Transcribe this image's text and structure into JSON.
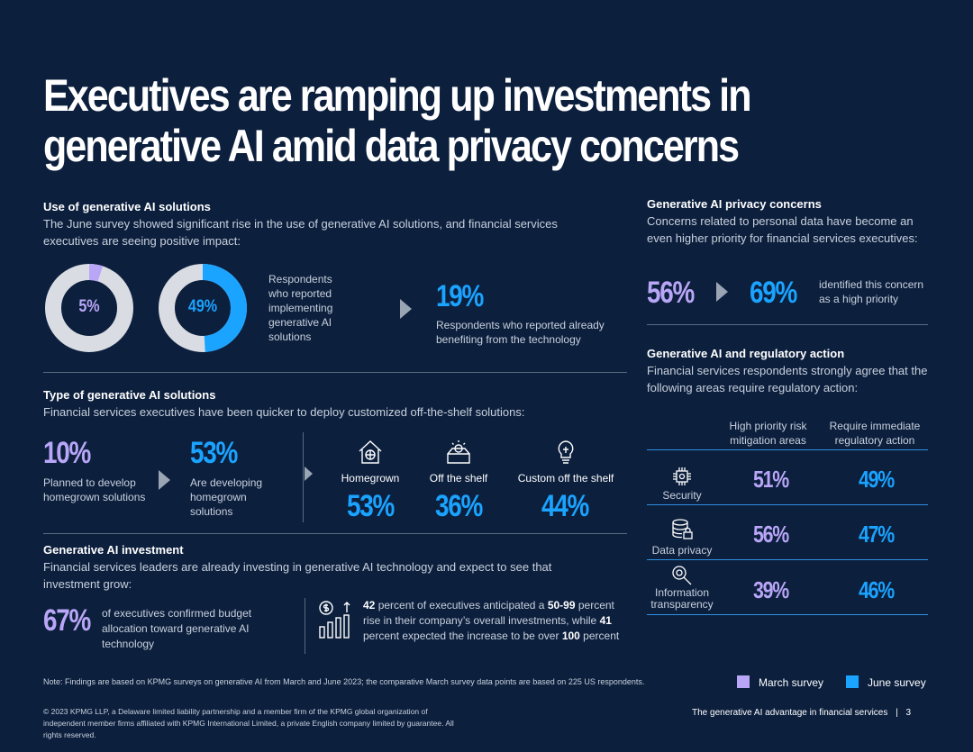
{
  "title": "Executives are ramping up investments in generative AI amid data privacy concerns",
  "use": {
    "heading": "Use of generative AI solutions",
    "desc": "The June survey showed significant rise in the use of generative AI solutions, and financial services executives are seeing positive impact:",
    "march_pct": "5%",
    "june_pct": "49%",
    "march_value": 5,
    "june_value": 49,
    "implement_text": "Respondents who reported implementing generative AI solutions",
    "benefit_pct": "19%",
    "benefit_text": "Respondents who reported already benefiting from the technology"
  },
  "type": {
    "heading": "Type of generative AI solutions",
    "desc": "Financial services executives have been quicker to deploy customized off-the-shelf solutions:",
    "march_pct": "10%",
    "march_text": "Planned to develop homegrown solutions",
    "june_pct": "53%",
    "june_text": "Are developing homegrown solutions",
    "categories": [
      {
        "label": "Homegrown",
        "value": "53%",
        "icon": "house-brain-icon"
      },
      {
        "label": "Off the shelf",
        "value": "36%",
        "icon": "box-icon"
      },
      {
        "label": "Custom off the shelf",
        "value": "44%",
        "icon": "lightbulb-icon"
      }
    ]
  },
  "investment": {
    "heading": "Generative AI investment",
    "desc": "Financial services leaders are already investing in generative AI technology and expect to see that investment grow:",
    "pct": "67%",
    "pct_text": "of executives confirmed budget allocation toward generative AI technology",
    "note_parts": [
      "42",
      " percent of executives anticipated a ",
      "50-99",
      " percent rise in their company’s overall investments, while ",
      "41",
      " percent expected the increase to be over ",
      "100",
      " percent"
    ]
  },
  "privacy": {
    "heading": "Generative AI privacy concerns",
    "desc": "Concerns related to personal data have become an even higher priority for financial services executives:",
    "march_pct": "56%",
    "june_pct": "69%",
    "text": "identified this concern as a high priority"
  },
  "regulatory": {
    "heading": "Generative AI and regulatory action",
    "desc": "Financial services respondents strongly agree that the following areas require regulatory action:",
    "col1": "High priority risk mitigation areas",
    "col2": "Require immediate regulatory action",
    "rows": [
      {
        "label": "Security",
        "v1": "51%",
        "v2": "49%",
        "icon": "security-chip-icon"
      },
      {
        "label": "Data privacy",
        "v1": "56%",
        "v2": "47%",
        "icon": "database-lock-icon"
      },
      {
        "label": "Information transparency",
        "v1": "39%",
        "v2": "46%",
        "icon": "magnifier-icon"
      }
    ]
  },
  "note": "Note: Findings are based on KPMG surveys on generative AI from March and June 2023; the comparative March survey data points are based on 225 US respondents.",
  "legend": {
    "march": "March survey",
    "june": "June survey",
    "march_color": "#b9a6f7",
    "june_color": "#1aa3ff"
  },
  "copyright": "© 2023 KPMG LLP, a Delaware limited liability partnership and a member firm of the KPMG global organization of independent member firms affiliated with KPMG International Limited, a private English company limited by guarantee. All rights reserved.",
  "footer_right": "The generative AI advantage in financial services",
  "page_num": "3"
}
